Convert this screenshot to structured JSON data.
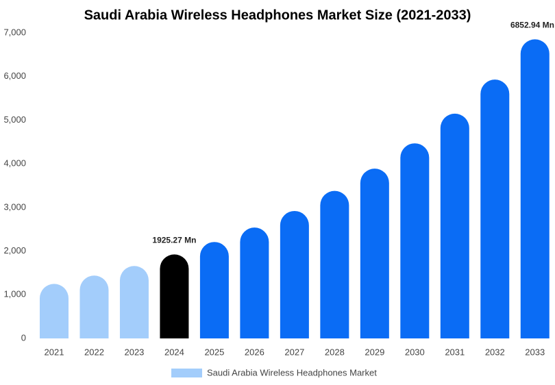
{
  "chart_data": {
    "type": "bar",
    "title": "Saudi Arabia Wireless Headphones Market Size (2021-2033)",
    "categories": [
      "2021",
      "2022",
      "2023",
      "2024",
      "2025",
      "2026",
      "2027",
      "2028",
      "2029",
      "2030",
      "2031",
      "2032",
      "2033"
    ],
    "series": [
      {
        "name": "Saudi Arabia Wireless Headphones Market",
        "color": "#a3cdfb",
        "colors": [
          "#a3cdfb",
          "#a3cdfb",
          "#a3cdfb",
          "#000000",
          "#0a6cf5",
          "#0a6cf5",
          "#0a6cf5",
          "#0a6cf5",
          "#0a6cf5",
          "#0a6cf5",
          "#0a6cf5",
          "#0a6cf5",
          "#0a6cf5"
        ],
        "values": [
          1250,
          1440,
          1660,
          1925.27,
          2210,
          2540,
          2920,
          3380,
          3890,
          4470,
          5150,
          5930,
          6852.94
        ],
        "value_labels": [
          null,
          null,
          null,
          "1925.27 Mn",
          null,
          null,
          null,
          null,
          null,
          null,
          null,
          null,
          "6852.94 Mn"
        ]
      }
    ],
    "ylim": [
      0,
      7000
    ],
    "yticks": [
      0,
      {
        "value": 1000,
        "label": "1,000"
      },
      {
        "value": 2000,
        "label": "2,000"
      },
      {
        "value": 3000,
        "label": "3,000"
      },
      {
        "value": 4000,
        "label": "4,000"
      },
      {
        "value": 5000,
        "label": "5,000"
      },
      {
        "value": 6000,
        "label": "6,000"
      },
      {
        "value": 7000,
        "label": "7,000"
      }
    ],
    "grid": false
  }
}
